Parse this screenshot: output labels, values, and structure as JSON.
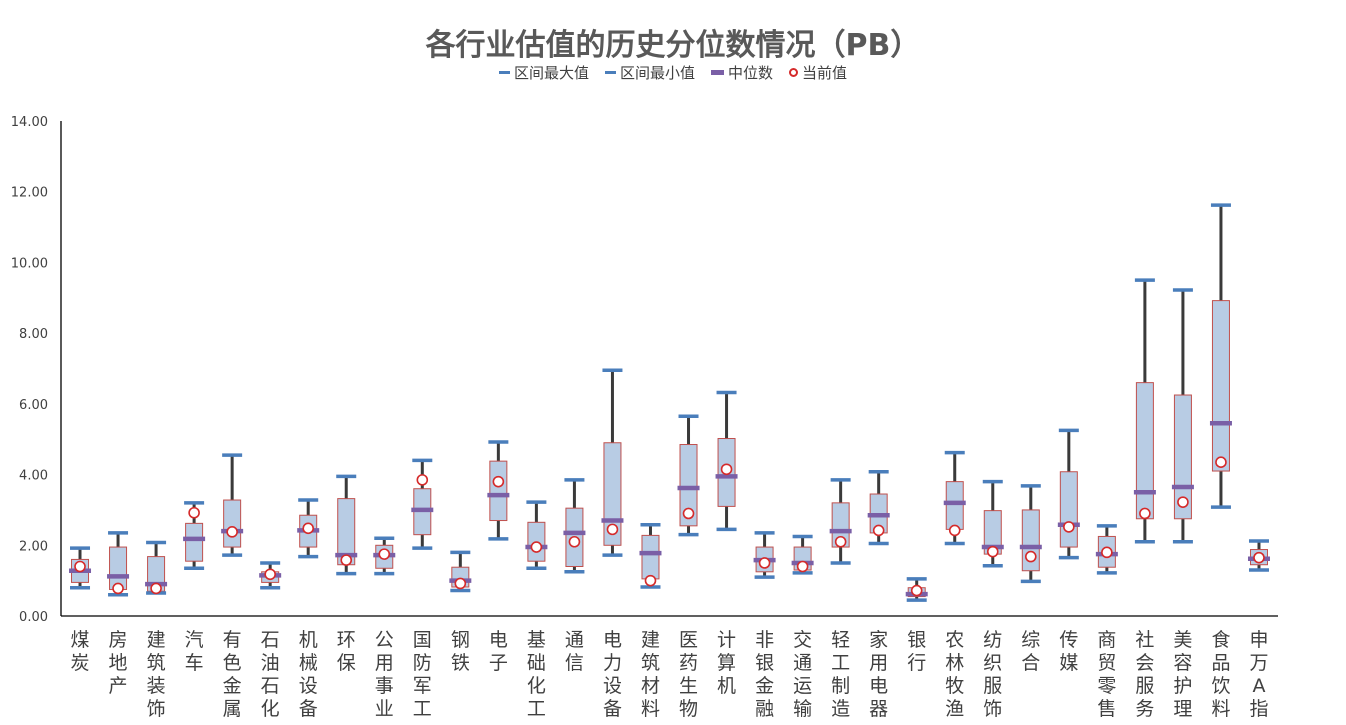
{
  "chart_data": {
    "type": "box",
    "title": "各行业估值的历史分位数情况（PB）",
    "legend": [
      {
        "label": "区间最大值",
        "color": "#4a7ebb"
      },
      {
        "label": "区间最小值",
        "color": "#4a7ebb"
      },
      {
        "label": "中位数",
        "color": "#7a5fa6"
      },
      {
        "label": "当前值",
        "color": "#d52a2a"
      }
    ],
    "legend_position": "top",
    "ylim": [
      0,
      14
    ],
    "yticks": [
      "0.00",
      "2.00",
      "4.00",
      "6.00",
      "8.00",
      "10.00",
      "12.00",
      "14.00"
    ],
    "grid": false,
    "categories": [
      "煤炭",
      "房地产",
      "建筑装饰",
      "汽车",
      "有色金属",
      "石油石化",
      "机械设备",
      "环保",
      "公用事业",
      "国防军工",
      "钢铁",
      "电子",
      "基础化工",
      "通信",
      "电力设备",
      "建筑材料",
      "医药生物",
      "计算机",
      "非银金融",
      "交通运输",
      "轻工制造",
      "家用电器",
      "银行",
      "农林牧渔",
      "纺织服饰",
      "综合",
      "传媒",
      "商贸零售",
      "社会服务",
      "美容护理",
      "食品饮料",
      "申万A指"
    ],
    "series": [
      {
        "name": "区间最大值",
        "values": [
          1.92,
          2.35,
          2.08,
          3.2,
          4.55,
          1.5,
          3.28,
          3.95,
          2.2,
          4.4,
          1.8,
          4.92,
          3.22,
          3.85,
          6.95,
          2.58,
          5.65,
          6.32,
          2.35,
          2.25,
          3.85,
          4.08,
          1.05,
          4.62,
          3.8,
          3.68,
          5.25,
          2.55,
          9.5,
          9.22,
          11.62,
          2.12
        ]
      },
      {
        "name": "区间最小值",
        "values": [
          0.8,
          0.6,
          0.65,
          1.35,
          1.72,
          0.8,
          1.68,
          1.2,
          1.2,
          1.92,
          0.72,
          2.18,
          1.35,
          1.25,
          1.72,
          0.82,
          2.3,
          2.45,
          1.1,
          1.22,
          1.5,
          2.05,
          0.45,
          2.05,
          1.42,
          0.98,
          1.65,
          1.22,
          2.1,
          2.1,
          3.08,
          1.3
        ]
      },
      {
        "name": "Q1",
        "values": [
          0.95,
          0.75,
          0.7,
          1.55,
          1.95,
          0.95,
          1.95,
          1.45,
          1.35,
          2.3,
          0.82,
          2.7,
          1.55,
          1.4,
          2.0,
          1.05,
          2.55,
          3.1,
          1.25,
          1.3,
          1.95,
          2.35,
          0.55,
          2.45,
          1.75,
          1.28,
          1.95,
          1.38,
          2.75,
          2.75,
          4.1,
          1.45
        ]
      },
      {
        "name": "Q3",
        "values": [
          1.6,
          1.95,
          1.68,
          2.62,
          3.28,
          1.25,
          2.85,
          3.32,
          2.0,
          3.6,
          1.38,
          4.38,
          2.65,
          3.05,
          4.9,
          2.28,
          4.85,
          5.02,
          1.95,
          1.95,
          3.2,
          3.45,
          0.8,
          3.8,
          2.98,
          3.0,
          4.08,
          2.25,
          6.6,
          6.25,
          8.92,
          1.88
        ]
      },
      {
        "name": "中位数",
        "values": [
          1.28,
          1.12,
          0.9,
          2.18,
          2.4,
          1.15,
          2.42,
          1.72,
          1.72,
          3.0,
          1.0,
          3.42,
          1.95,
          2.35,
          2.7,
          1.78,
          3.62,
          3.95,
          1.58,
          1.5,
          2.4,
          2.85,
          0.62,
          3.2,
          1.95,
          1.95,
          2.58,
          1.75,
          3.5,
          3.65,
          5.45,
          1.62
        ]
      },
      {
        "name": "当前值",
        "values": [
          1.4,
          0.78,
          0.78,
          2.92,
          2.38,
          1.18,
          2.48,
          1.58,
          1.75,
          3.85,
          0.92,
          3.8,
          1.95,
          2.1,
          2.45,
          1.0,
          2.9,
          4.15,
          1.5,
          1.4,
          2.1,
          2.42,
          0.72,
          2.42,
          1.82,
          1.68,
          2.52,
          1.8,
          2.9,
          3.22,
          4.35,
          1.65
        ]
      }
    ]
  }
}
